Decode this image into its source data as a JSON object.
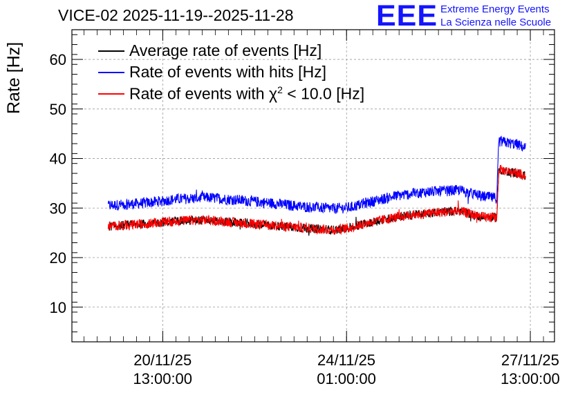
{
  "header": {
    "title": "VICE-02 2025-11-19--2025-11-28",
    "logo_text": "EEE",
    "org_line1": "Extreme Energy Events",
    "org_line2": "La Scienza nelle Scuole"
  },
  "legend": [
    {
      "label": "Average rate of events [Hz]",
      "color": "#000000"
    },
    {
      "label": "Rate of events with hits [Hz]",
      "color": "#0000ff"
    },
    {
      "label_pre": "Rate of events with ",
      "chi": "χ",
      "sup": "2",
      "label_post": " < 10.0 [Hz]",
      "color": "#ff0000"
    }
  ],
  "chart_data": {
    "type": "line",
    "title": "VICE-02 2025-11-19--2025-11-28",
    "ylabel": "Rate [Hz]",
    "xlabel": "",
    "ylim": [
      3,
      66
    ],
    "y_ticks": [
      10,
      20,
      30,
      40,
      50,
      60
    ],
    "grid": true,
    "x_unit": "days since 2025-11-19 00:00",
    "xlim": [
      -0.19,
      9.0
    ],
    "x_ticks": [
      {
        "x": 1.54,
        "line1": "20/11/25",
        "line2": "13:00:00"
      },
      {
        "x": 5.04,
        "line1": "24/11/25",
        "line2": "01:00:00"
      },
      {
        "x": 8.54,
        "line1": "27/11/25",
        "line2": "13:00:00"
      }
    ],
    "series": [
      {
        "name": "Rate of events with hits [Hz]",
        "color": "#0000ff",
        "noise": 1.1,
        "points": [
          [
            0.5,
            30.5
          ],
          [
            1.2,
            31.0
          ],
          [
            1.8,
            31.8
          ],
          [
            2.4,
            32.1
          ],
          [
            3.0,
            31.6
          ],
          [
            3.6,
            31.0
          ],
          [
            4.2,
            30.3
          ],
          [
            4.8,
            29.9
          ],
          [
            5.1,
            30.1
          ],
          [
            5.4,
            31.0
          ],
          [
            6.0,
            32.5
          ],
          [
            6.6,
            33.3
          ],
          [
            7.2,
            33.6
          ],
          [
            7.6,
            32.4
          ],
          [
            7.9,
            32.0
          ],
          [
            7.94,
            43.5
          ],
          [
            8.3,
            42.8
          ],
          [
            8.45,
            42.1
          ]
        ]
      },
      {
        "name": "Average rate of events [Hz]",
        "color": "#000000",
        "noise": 0.9,
        "points": [
          [
            0.5,
            26.3
          ],
          [
            1.2,
            26.8
          ],
          [
            1.8,
            27.4
          ],
          [
            2.4,
            27.6
          ],
          [
            3.0,
            27.0
          ],
          [
            3.6,
            26.5
          ],
          [
            4.2,
            26.0
          ],
          [
            4.8,
            25.6
          ],
          [
            5.1,
            26.0
          ],
          [
            5.4,
            26.9
          ],
          [
            6.0,
            28.2
          ],
          [
            6.6,
            29.0
          ],
          [
            7.2,
            29.4
          ],
          [
            7.6,
            28.2
          ],
          [
            7.9,
            28.1
          ],
          [
            7.94,
            37.8
          ],
          [
            8.3,
            37.0
          ],
          [
            8.45,
            36.5
          ]
        ]
      },
      {
        "name": "Rate of events with chi2 < 10.0 [Hz]",
        "color": "#ff0000",
        "noise": 1.0,
        "points": [
          [
            0.5,
            26.3
          ],
          [
            1.2,
            26.8
          ],
          [
            1.8,
            27.4
          ],
          [
            2.4,
            27.6
          ],
          [
            3.0,
            27.0
          ],
          [
            3.6,
            26.5
          ],
          [
            4.2,
            26.0
          ],
          [
            4.8,
            25.6
          ],
          [
            5.1,
            26.0
          ],
          [
            5.4,
            26.9
          ],
          [
            6.0,
            28.2
          ],
          [
            6.6,
            29.0
          ],
          [
            7.2,
            29.4
          ],
          [
            7.6,
            28.2
          ],
          [
            7.9,
            28.1
          ],
          [
            7.94,
            37.8
          ],
          [
            8.3,
            37.0
          ],
          [
            8.45,
            36.5
          ]
        ]
      }
    ]
  }
}
